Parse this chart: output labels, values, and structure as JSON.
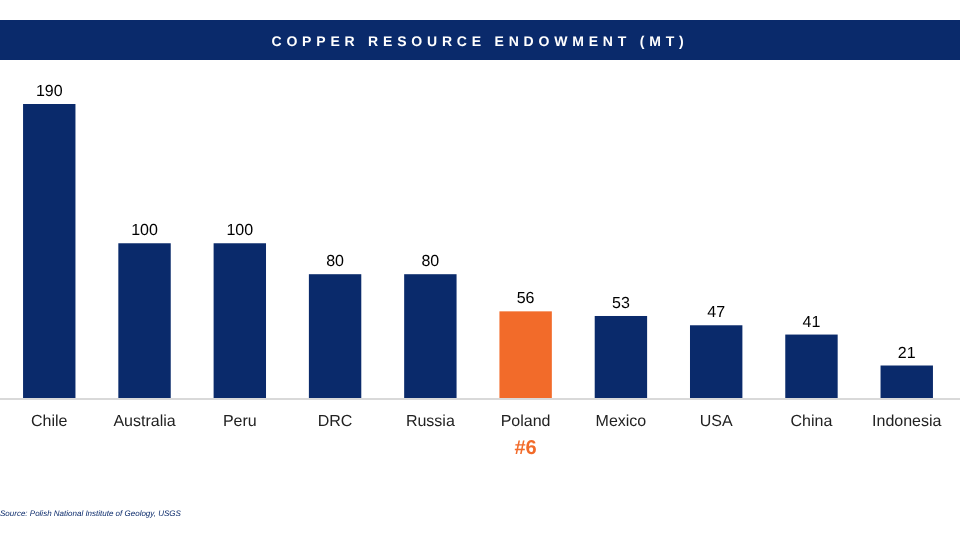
{
  "chart_data": {
    "type": "bar",
    "title": "COPPER RESOURCE ENDOWMENT (MT)",
    "categories": [
      "Chile",
      "Australia",
      "Peru",
      "DRC",
      "Russia",
      "Poland",
      "Mexico",
      "USA",
      "China",
      "Indonesia"
    ],
    "values": [
      190,
      100,
      100,
      80,
      80,
      56,
      53,
      47,
      41,
      21
    ],
    "colors": [
      "#0a2a6b",
      "#0a2a6b",
      "#0a2a6b",
      "#0a2a6b",
      "#0a2a6b",
      "#f26b2a",
      "#0a2a6b",
      "#0a2a6b",
      "#0a2a6b",
      "#0a2a6b"
    ],
    "data_labels": true,
    "annotations": [
      "#6",
      "Source: Polish National Institute of Geology, USGS"
    ]
  }
}
